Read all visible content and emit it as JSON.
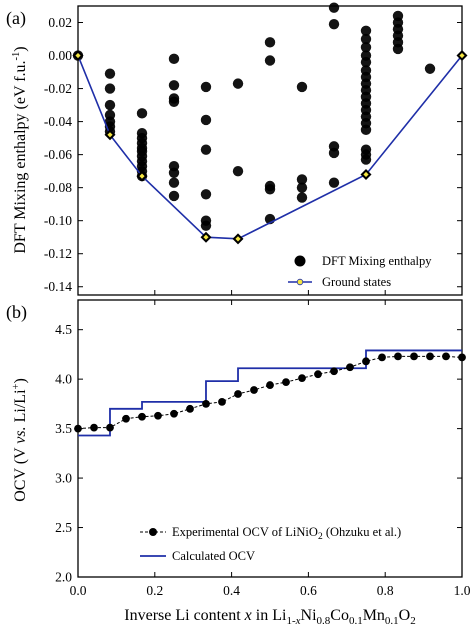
{
  "chart_data": [
    {
      "type": "scatter",
      "panel_label": "(a)",
      "ylabel": "DFT Mixing enthalpy (eV f.u.-1)",
      "xlim": [
        0.0,
        1.0
      ],
      "ylim": [
        -0.145,
        0.03
      ],
      "yticks": [
        0.02,
        0.0,
        -0.02,
        -0.04,
        -0.06,
        -0.08,
        -0.1,
        -0.12,
        -0.14
      ],
      "ytick_labels": [
        "0.02",
        "0.00",
        "-0.02",
        "-0.04",
        "-0.06",
        "-0.08",
        "-0.10",
        "-0.12",
        "-0.14"
      ],
      "legend_position": "bottom-right",
      "colors": {
        "points": "#000000",
        "hull_line": "#1f2fa8",
        "hull_marker": "#f5e642"
      },
      "series": [
        {
          "name": "DFT Mixing enthalpy",
          "points": [
            [
              0.0,
              0.0
            ],
            [
              0.0833,
              -0.011
            ],
            [
              0.0833,
              -0.02
            ],
            [
              0.0833,
              -0.03
            ],
            [
              0.0833,
              -0.036
            ],
            [
              0.0833,
              -0.04
            ],
            [
              0.0833,
              -0.043
            ],
            [
              0.0833,
              -0.046
            ],
            [
              0.1667,
              -0.035
            ],
            [
              0.1667,
              -0.047
            ],
            [
              0.1667,
              -0.05
            ],
            [
              0.1667,
              -0.053
            ],
            [
              0.1667,
              -0.056
            ],
            [
              0.1667,
              -0.058
            ],
            [
              0.1667,
              -0.061
            ],
            [
              0.1667,
              -0.064
            ],
            [
              0.1667,
              -0.067
            ],
            [
              0.1667,
              -0.07
            ],
            [
              0.1667,
              -0.073
            ],
            [
              0.25,
              -0.002
            ],
            [
              0.25,
              -0.018
            ],
            [
              0.25,
              -0.026
            ],
            [
              0.25,
              -0.028
            ],
            [
              0.25,
              -0.067
            ],
            [
              0.25,
              -0.071
            ],
            [
              0.25,
              -0.077
            ],
            [
              0.25,
              -0.085
            ],
            [
              0.3333,
              -0.019
            ],
            [
              0.3333,
              -0.039
            ],
            [
              0.3333,
              -0.057
            ],
            [
              0.3333,
              -0.084
            ],
            [
              0.3333,
              -0.1
            ],
            [
              0.3333,
              -0.103
            ],
            [
              0.4167,
              -0.017
            ],
            [
              0.4167,
              -0.07
            ],
            [
              0.5,
              0.008
            ],
            [
              0.5,
              -0.003
            ],
            [
              0.5,
              -0.079
            ],
            [
              0.5,
              -0.081
            ],
            [
              0.5,
              -0.099
            ],
            [
              0.5833,
              -0.019
            ],
            [
              0.5833,
              -0.075
            ],
            [
              0.5833,
              -0.08
            ],
            [
              0.5833,
              -0.086
            ],
            [
              0.6667,
              0.029
            ],
            [
              0.6667,
              0.019
            ],
            [
              0.6667,
              -0.055
            ],
            [
              0.6667,
              -0.059
            ],
            [
              0.6667,
              -0.077
            ],
            [
              0.75,
              0.015
            ],
            [
              0.75,
              0.01
            ],
            [
              0.75,
              0.005
            ],
            [
              0.75,
              0.0
            ],
            [
              0.75,
              -0.004
            ],
            [
              0.75,
              -0.009
            ],
            [
              0.75,
              -0.013
            ],
            [
              0.75,
              -0.017
            ],
            [
              0.75,
              -0.021
            ],
            [
              0.75,
              -0.025
            ],
            [
              0.75,
              -0.029
            ],
            [
              0.75,
              -0.033
            ],
            [
              0.75,
              -0.037
            ],
            [
              0.75,
              -0.041
            ],
            [
              0.75,
              -0.045
            ],
            [
              0.75,
              -0.057
            ],
            [
              0.75,
              -0.06
            ],
            [
              0.75,
              -0.063
            ],
            [
              0.8333,
              0.024
            ],
            [
              0.8333,
              0.02
            ],
            [
              0.8333,
              0.016
            ],
            [
              0.8333,
              0.012
            ],
            [
              0.8333,
              0.008
            ],
            [
              0.8333,
              0.004
            ],
            [
              0.9167,
              -0.008
            ]
          ]
        },
        {
          "name": "Ground states",
          "x": [
            0.0,
            0.0833,
            0.1667,
            0.3333,
            0.4167,
            0.75,
            1.0
          ],
          "y": [
            0.0,
            -0.048,
            -0.073,
            -0.11,
            -0.111,
            -0.072,
            0.0
          ]
        }
      ]
    },
    {
      "type": "line",
      "panel_label": "(b)",
      "ylabel": "OCV (V vs. Li/Li+)",
      "xlabel": "Inverse Li content x in Li1-xNi0.8Co0.1Mn0.1O2",
      "xlim": [
        0.0,
        1.0
      ],
      "ylim": [
        2.0,
        4.8
      ],
      "xticks": [
        0.0,
        0.2,
        0.4,
        0.6,
        0.8,
        1.0
      ],
      "xtick_labels": [
        "0.0",
        "0.2",
        "0.4",
        "0.6",
        "0.8",
        "1.0"
      ],
      "yticks": [
        2.0,
        2.5,
        3.0,
        3.5,
        4.0,
        4.5
      ],
      "ytick_labels": [
        "2.0",
        "2.5",
        "3.0",
        "3.5",
        "4.0",
        "4.5"
      ],
      "legend_position": "bottom-right",
      "colors": {
        "experimental": "#000000",
        "calculated": "#1f2fa8"
      },
      "series": [
        {
          "name": "Experimental OCV of LiNiO2 (Ohzuku et al.)",
          "x": [
            0.0,
            0.0417,
            0.0833,
            0.125,
            0.1667,
            0.2083,
            0.25,
            0.2917,
            0.3333,
            0.375,
            0.4167,
            0.4583,
            0.5,
            0.5417,
            0.5833,
            0.625,
            0.6667,
            0.7083,
            0.75,
            0.7917,
            0.8333,
            0.875,
            0.9167,
            0.9583,
            1.0
          ],
          "y": [
            3.5,
            3.51,
            3.51,
            3.6,
            3.62,
            3.63,
            3.65,
            3.7,
            3.75,
            3.77,
            3.85,
            3.89,
            3.94,
            3.97,
            4.01,
            4.05,
            4.08,
            4.12,
            4.18,
            4.22,
            4.23,
            4.23,
            4.23,
            4.23,
            4.22
          ]
        },
        {
          "name": "Calculated OCV",
          "steps": [
            [
              0.0,
              3.43
            ],
            [
              0.0833,
              3.7
            ],
            [
              0.1667,
              3.77
            ],
            [
              0.3333,
              3.98
            ],
            [
              0.4167,
              4.11
            ],
            [
              0.75,
              4.29
            ],
            [
              1.0,
              4.29
            ]
          ]
        }
      ]
    }
  ],
  "legend_a": {
    "points_label": "DFT Mixing enthalpy",
    "line_label": "Ground states"
  },
  "legend_b": {
    "line1_prefix": "Experimental OCV of LiNiO",
    "line1_sub": "2",
    "line1_suffix": " (Ohzuku et al.)",
    "line2_label": "Calculated OCV"
  },
  "axis_text": {
    "a_label": "(a)",
    "b_label": "(b)",
    "ylabel_a_main": "DFT Mixing enthalpy (eV f.u.",
    "ylabel_a_sup": "-1",
    "ylabel_a_close": ")",
    "ylabel_b_pre": "OCV (V ",
    "ylabel_b_vs": "vs.",
    "ylabel_b_post": " Li/Li",
    "ylabel_b_sup": "+",
    "ylabel_b_close": ")",
    "xlabel_pre": "Inverse Li content ",
    "xlabel_x": "x",
    "xlabel_in": " in Li",
    "xlabel_s1": "1-",
    "xlabel_s1x": "x",
    "xlabel_ni": "Ni",
    "xlabel_s2": "0.8",
    "xlabel_co": "Co",
    "xlabel_s3": "0.1",
    "xlabel_mn": "Mn",
    "xlabel_s4": "0.1",
    "xlabel_o": "O",
    "xlabel_s5": "2"
  }
}
